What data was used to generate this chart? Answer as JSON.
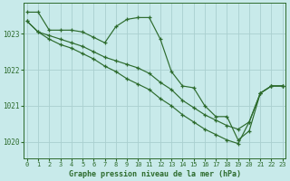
{
  "title": "Graphe pression niveau de la mer (hPa)",
  "bg_color": "#c8eaea",
  "grid_color": "#aacfcf",
  "line_color": "#2d6b2d",
  "xlim": [
    -0.3,
    23.3
  ],
  "ylim": [
    1019.55,
    1023.85
  ],
  "yticks": [
    1020,
    1021,
    1022,
    1023
  ],
  "xticks": [
    0,
    1,
    2,
    3,
    4,
    5,
    6,
    7,
    8,
    9,
    10,
    11,
    12,
    13,
    14,
    15,
    16,
    17,
    18,
    19,
    20,
    21,
    22,
    23
  ],
  "line1_x": [
    0,
    1,
    2,
    3,
    4,
    5,
    6,
    7,
    8,
    9,
    10,
    11,
    12,
    13,
    14,
    15,
    16,
    17,
    18,
    19,
    20,
    21,
    22,
    23
  ],
  "line1_y": [
    1023.6,
    1023.6,
    1023.1,
    1023.1,
    1023.1,
    1023.05,
    1022.9,
    1022.75,
    1023.2,
    1023.4,
    1023.45,
    1023.45,
    1022.85,
    1021.95,
    1021.55,
    1021.5,
    1021.0,
    1020.7,
    1020.7,
    1020.05,
    1020.3,
    1021.35,
    1021.55,
    1021.55
  ],
  "line2_x": [
    0,
    1,
    2,
    3,
    4,
    5,
    6,
    7,
    8,
    9,
    10,
    11,
    12,
    13,
    14,
    15,
    16,
    17,
    18,
    19,
    20,
    21,
    22,
    23
  ],
  "line2_y": [
    1023.35,
    1023.05,
    1022.95,
    1022.85,
    1022.75,
    1022.65,
    1022.5,
    1022.35,
    1022.25,
    1022.15,
    1022.05,
    1021.9,
    1021.65,
    1021.45,
    1021.15,
    1020.95,
    1020.75,
    1020.6,
    1020.45,
    1020.35,
    1020.55,
    1021.35,
    1021.55,
    1021.55
  ],
  "line3_x": [
    0,
    1,
    2,
    3,
    4,
    5,
    6,
    7,
    8,
    9,
    10,
    11,
    12,
    13,
    14,
    15,
    16,
    17,
    18,
    19,
    20,
    21,
    22,
    23
  ],
  "line3_y": [
    1023.35,
    1023.05,
    1022.85,
    1022.7,
    1022.6,
    1022.45,
    1022.3,
    1022.1,
    1021.95,
    1021.75,
    1021.6,
    1021.45,
    1021.2,
    1021.0,
    1020.75,
    1020.55,
    1020.35,
    1020.2,
    1020.05,
    1019.95,
    1020.55,
    1021.35,
    1021.55,
    1021.55
  ]
}
